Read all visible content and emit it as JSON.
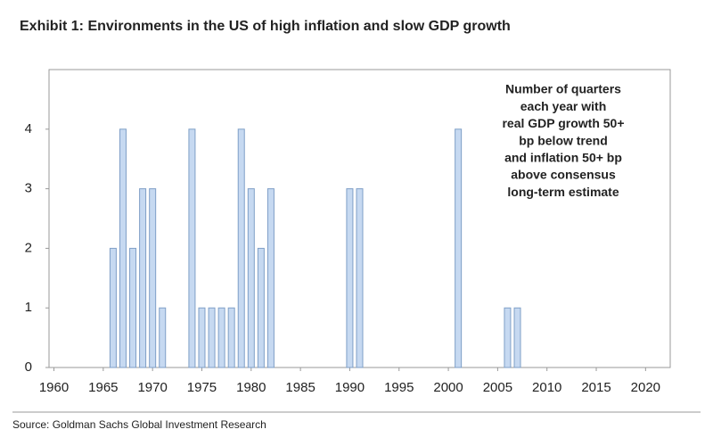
{
  "chart_data": {
    "type": "bar",
    "title": "Exhibit 1: Environments in the US of high inflation and slow GDP growth",
    "annotation": [
      "Number of quarters",
      "each year with",
      "real GDP growth 50+",
      "bp below trend",
      "and inflation 50+ bp",
      "above consensus",
      "long-term estimate"
    ],
    "source": "Source: Goldman Sachs Global Investment Research",
    "x": [
      1966,
      1967,
      1968,
      1969,
      1970,
      1971,
      1974,
      1975,
      1976,
      1977,
      1978,
      1979,
      1980,
      1981,
      1982,
      1990,
      1991,
      2001,
      2006,
      2007
    ],
    "values": [
      2,
      4,
      2,
      3,
      3,
      1,
      4,
      1,
      1,
      1,
      1,
      4,
      3,
      2,
      3,
      3,
      3,
      4,
      1,
      1
    ],
    "color": "#c6d9f1",
    "xlim": [
      1959.5,
      2022.5
    ],
    "xticks": [
      1960,
      1965,
      1970,
      1975,
      1980,
      1985,
      1990,
      1995,
      2000,
      2005,
      2010,
      2015,
      2020
    ],
    "ylim": [
      0,
      5
    ],
    "yticks": [
      0,
      1,
      2,
      3,
      4
    ]
  }
}
